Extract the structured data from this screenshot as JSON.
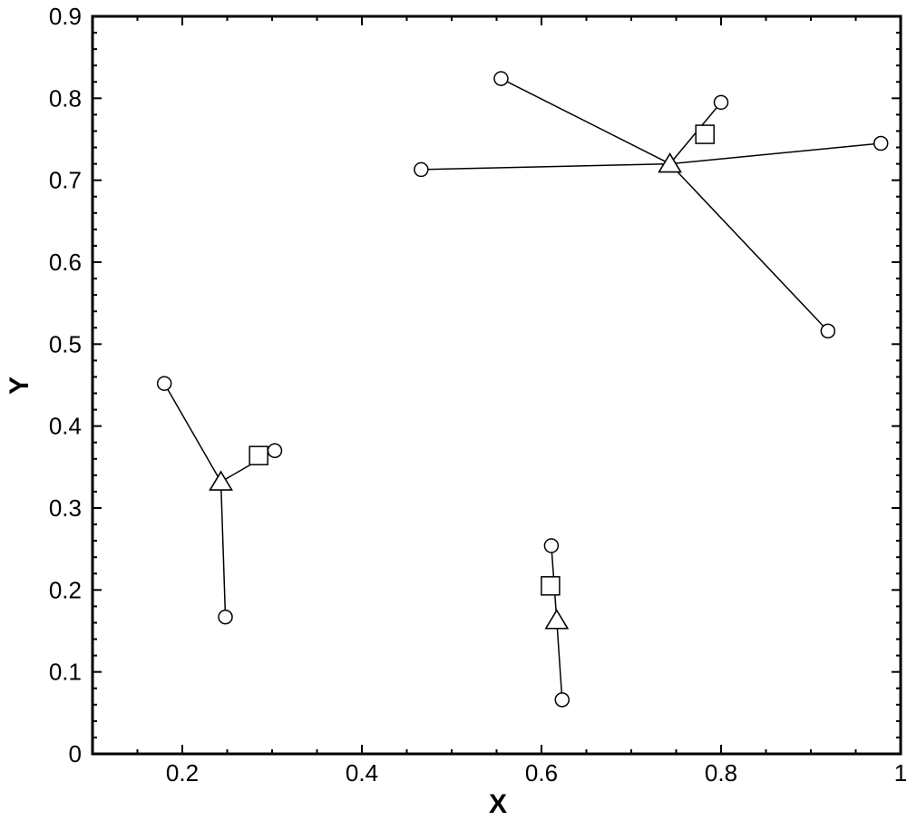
{
  "chart_data": {
    "type": "scatter",
    "title": "",
    "xlabel": "X",
    "ylabel": "Y",
    "xlim": [
      0.1,
      1.0
    ],
    "ylim": [
      0,
      0.9
    ],
    "x_ticks": [
      0.2,
      0.4,
      0.6,
      0.8,
      1.0
    ],
    "x_tick_labels": [
      "0.2",
      "0.4",
      "0.6",
      "0.8",
      "1"
    ],
    "y_ticks": [
      0,
      0.1,
      0.2,
      0.3,
      0.4,
      0.5,
      0.6,
      0.7,
      0.8,
      0.9
    ],
    "y_tick_labels": [
      "0",
      "0.1",
      "0.2",
      "0.3",
      "0.4",
      "0.5",
      "0.6",
      "0.7",
      "0.8",
      "0.9"
    ],
    "grid": false,
    "legend": "none",
    "series": [
      {
        "marker": "circle",
        "points": [
          {
            "x": 0.18,
            "y": 0.452
          },
          {
            "x": 0.303,
            "y": 0.37
          },
          {
            "x": 0.248,
            "y": 0.167
          },
          {
            "x": 0.555,
            "y": 0.824
          },
          {
            "x": 0.8,
            "y": 0.795
          },
          {
            "x": 0.466,
            "y": 0.713
          },
          {
            "x": 0.978,
            "y": 0.745
          },
          {
            "x": 0.919,
            "y": 0.516
          },
          {
            "x": 0.611,
            "y": 0.254
          },
          {
            "x": 0.623,
            "y": 0.066
          }
        ]
      },
      {
        "marker": "triangle",
        "points": [
          {
            "x": 0.243,
            "y": 0.332
          },
          {
            "x": 0.743,
            "y": 0.72
          },
          {
            "x": 0.617,
            "y": 0.163
          }
        ]
      },
      {
        "marker": "square",
        "points": [
          {
            "x": 0.285,
            "y": 0.364
          },
          {
            "x": 0.782,
            "y": 0.756
          },
          {
            "x": 0.61,
            "y": 0.205
          }
        ]
      }
    ],
    "connections": [
      {
        "from": {
          "x": 0.243,
          "y": 0.332
        },
        "to": {
          "x": 0.18,
          "y": 0.452
        }
      },
      {
        "from": {
          "x": 0.243,
          "y": 0.332
        },
        "to": {
          "x": 0.303,
          "y": 0.37
        }
      },
      {
        "from": {
          "x": 0.243,
          "y": 0.332
        },
        "to": {
          "x": 0.248,
          "y": 0.167
        }
      },
      {
        "from": {
          "x": 0.743,
          "y": 0.72
        },
        "to": {
          "x": 0.555,
          "y": 0.824
        }
      },
      {
        "from": {
          "x": 0.743,
          "y": 0.72
        },
        "to": {
          "x": 0.8,
          "y": 0.795
        }
      },
      {
        "from": {
          "x": 0.743,
          "y": 0.72
        },
        "to": {
          "x": 0.466,
          "y": 0.713
        }
      },
      {
        "from": {
          "x": 0.743,
          "y": 0.72
        },
        "to": {
          "x": 0.978,
          "y": 0.745
        }
      },
      {
        "from": {
          "x": 0.743,
          "y": 0.72
        },
        "to": {
          "x": 0.919,
          "y": 0.516
        }
      },
      {
        "from": {
          "x": 0.617,
          "y": 0.163
        },
        "to": {
          "x": 0.611,
          "y": 0.254
        }
      },
      {
        "from": {
          "x": 0.617,
          "y": 0.163
        },
        "to": {
          "x": 0.623,
          "y": 0.066
        }
      }
    ]
  }
}
